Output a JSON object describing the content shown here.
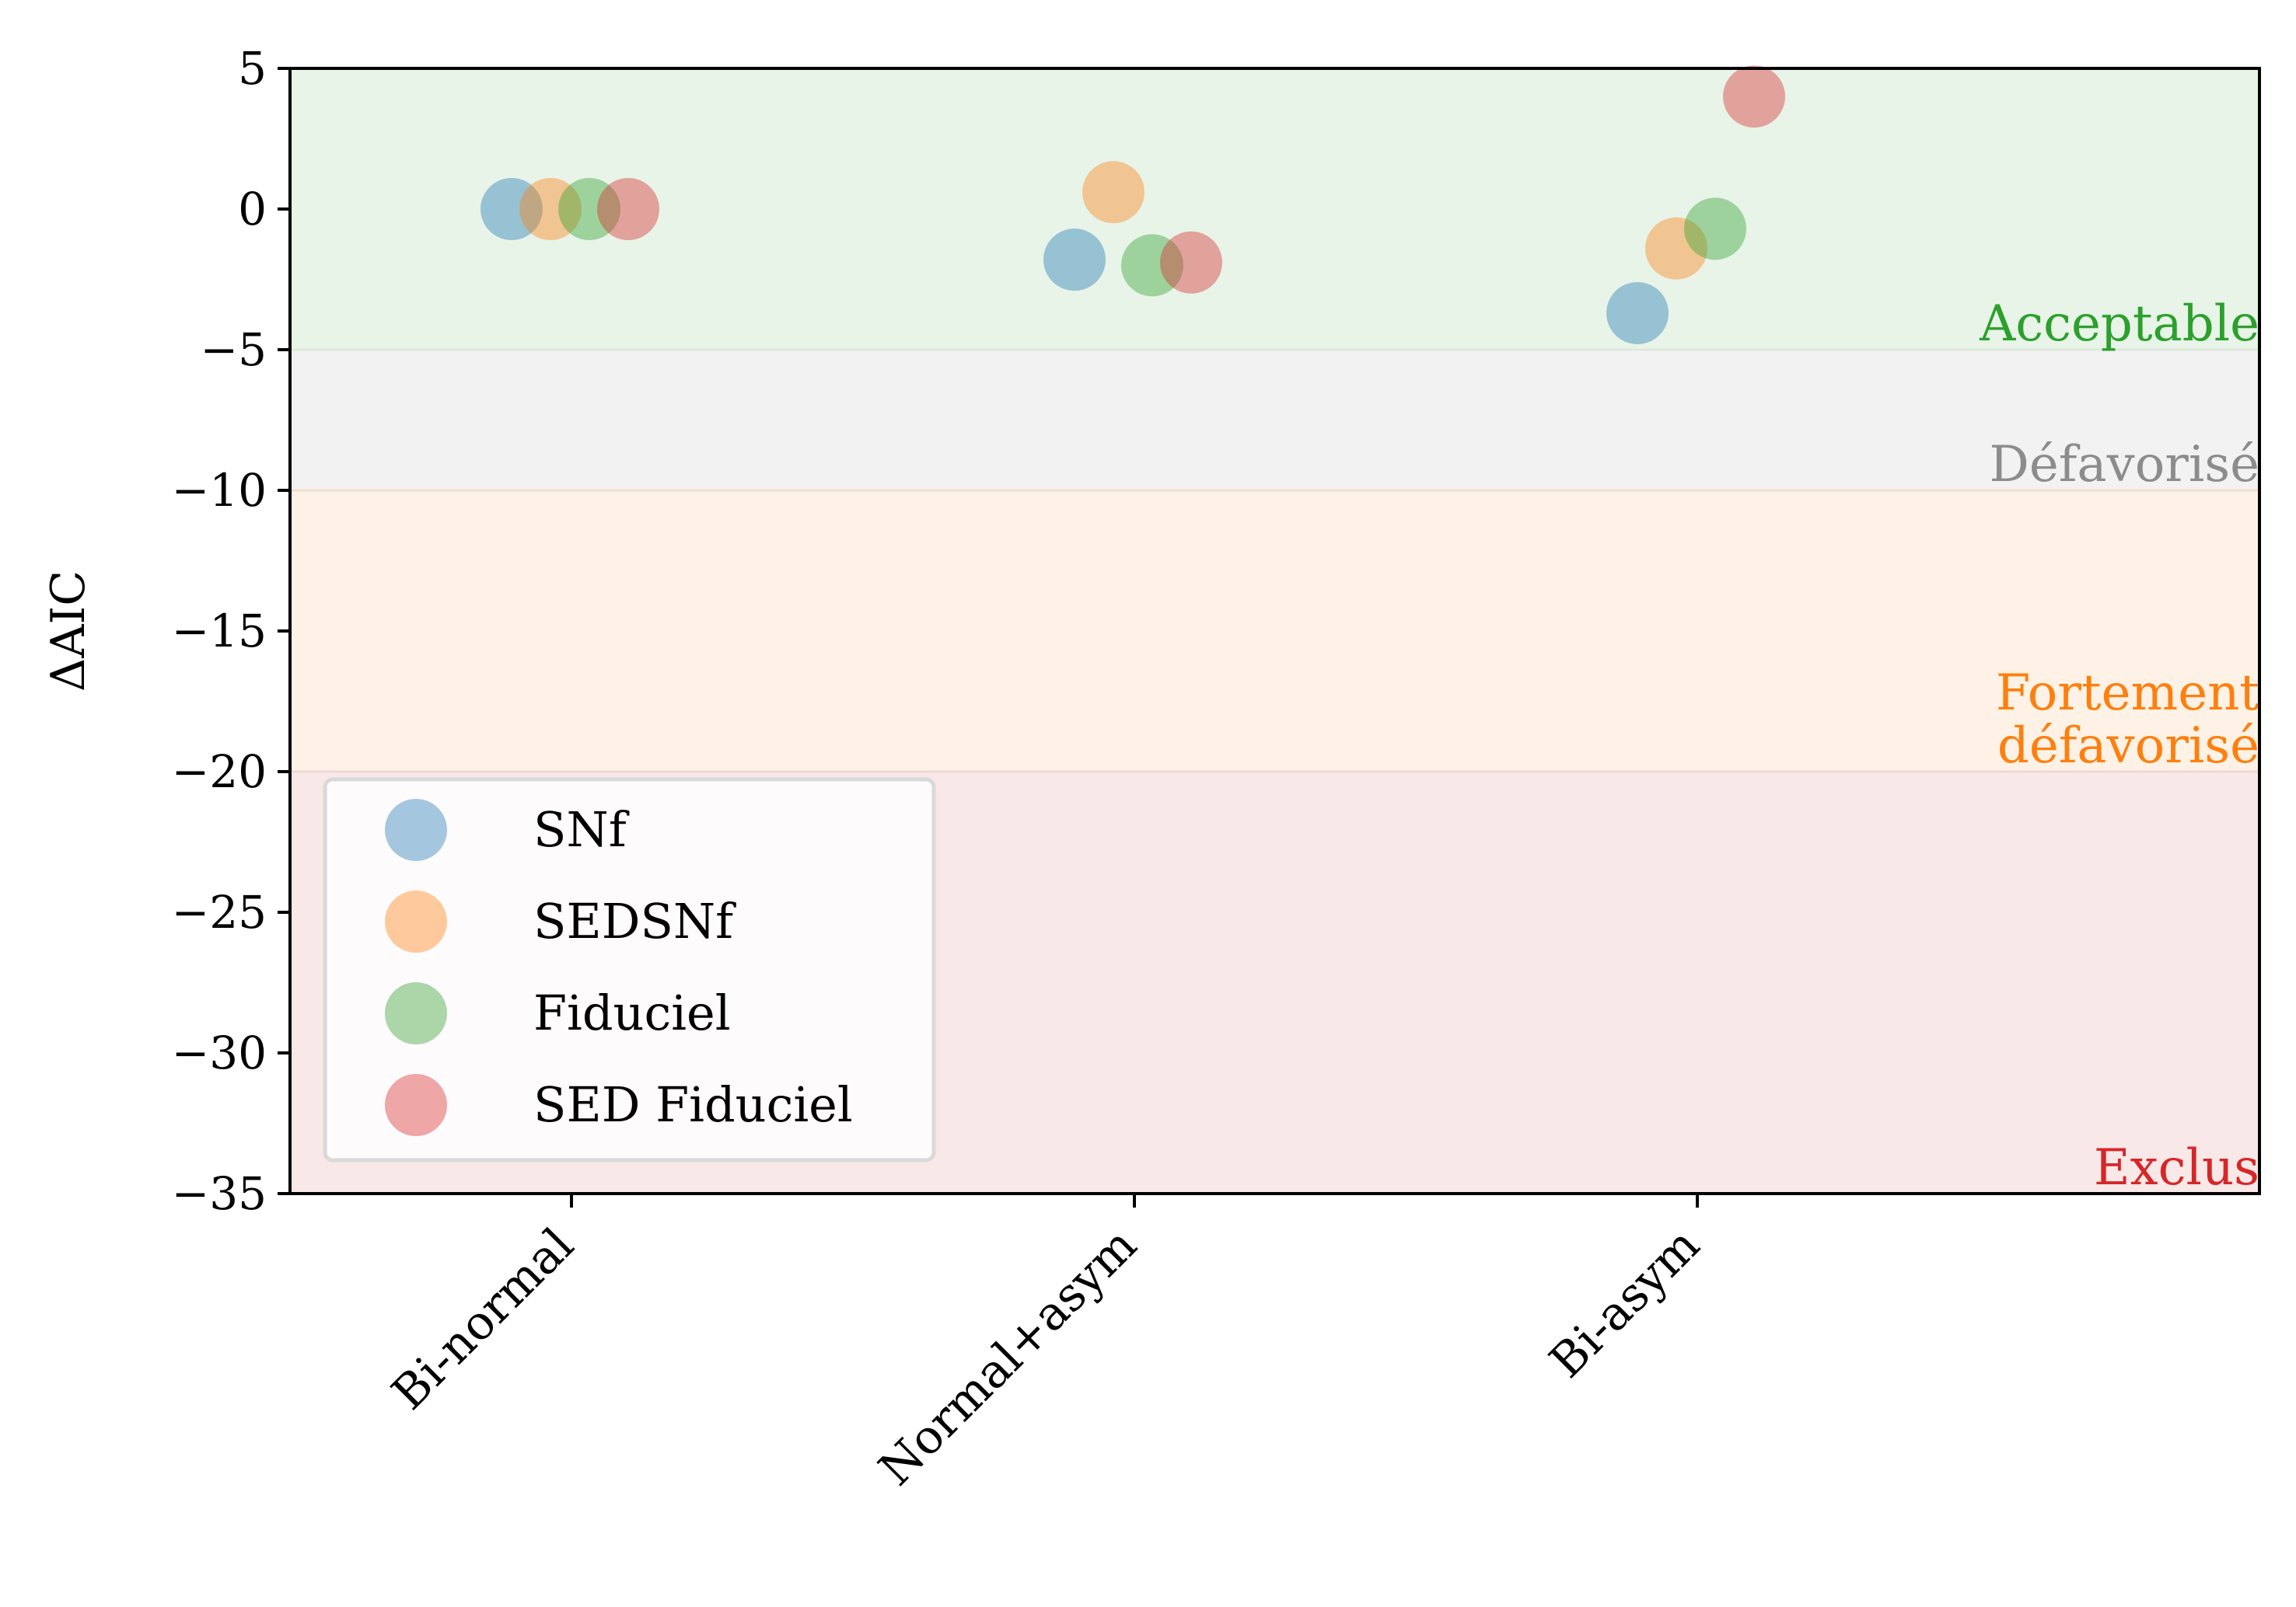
{
  "chart_data": {
    "type": "scatter",
    "ylabel": "ΔAIC",
    "xlabel": "",
    "title": "",
    "ylim": [
      -35,
      5
    ],
    "yticks": [
      5,
      0,
      -5,
      -10,
      -15,
      -20,
      -25,
      -30,
      -35
    ],
    "ytick_labels": [
      "5",
      "0",
      "−5",
      "−10",
      "−15",
      "−20",
      "−25",
      "−30",
      "−35"
    ],
    "categories": [
      "Bi-normal",
      "Normal+asym",
      "Bi-asym"
    ],
    "series": [
      {
        "name": "SNf",
        "color": "#1f77b4",
        "values": [
          0.0,
          -1.8,
          -3.7
        ]
      },
      {
        "name": "SEDSNf",
        "color": "#ff7f0e",
        "values": [
          0.0,
          0.6,
          -1.4
        ]
      },
      {
        "name": "Fiduciel",
        "color": "#2ca02c",
        "values": [
          0.0,
          -2.0,
          -0.7
        ]
      },
      {
        "name": "SED Fiduciel",
        "color": "#d62728",
        "values": [
          0.0,
          -1.9,
          4.0
        ]
      }
    ],
    "bands": [
      {
        "label": "Acceptable",
        "from": -5,
        "to": 5,
        "fill": "#e8f4e8",
        "text_color": "#2ca02c"
      },
      {
        "label": "Défavorisé",
        "from": -10,
        "to": -5,
        "fill": "#f2f2f2",
        "text_color": "#8c8c8c"
      },
      {
        "label": "Fortement\ndéfavorisé",
        "from": -20,
        "to": -10,
        "fill": "#fef2e6",
        "text_color": "#ff7f0e"
      },
      {
        "label": "Exclus",
        "from": -35,
        "to": -20,
        "fill": "#f9e8e8",
        "text_color": "#d62728"
      }
    ],
    "legend_position": "lower-left",
    "grid": false
  }
}
